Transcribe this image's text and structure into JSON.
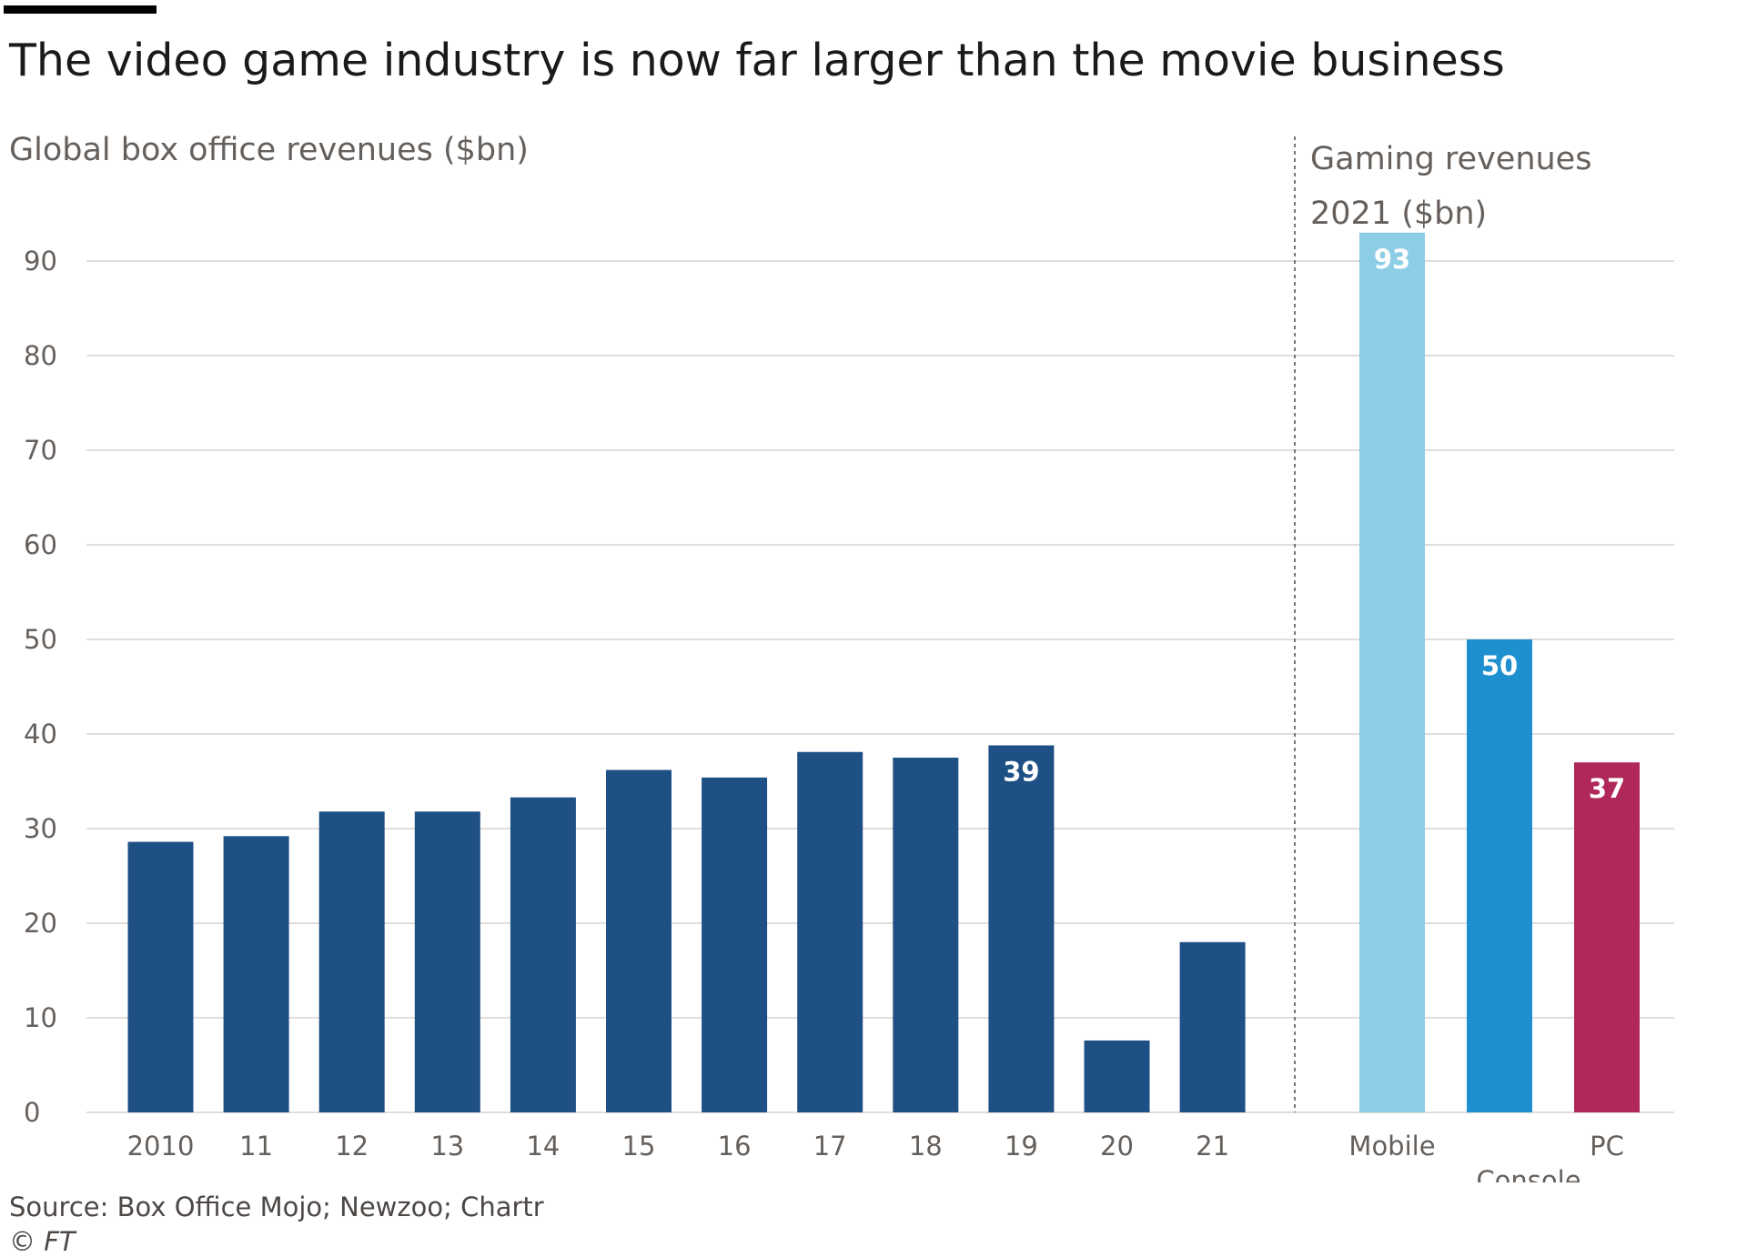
{
  "chart_data": {
    "type": "bar",
    "title": "The video game industry is now far larger than the movie business",
    "subtitle_left": "Global box office revenues ($bn)",
    "subtitle_right": [
      "Gaming revenues",
      "2021 ($bn)"
    ],
    "ylim": [
      0,
      90
    ],
    "y_ticks": [
      "0",
      "10",
      "20",
      "30",
      "40",
      "50",
      "60",
      "70",
      "80",
      "90"
    ],
    "grid": true,
    "series": [
      {
        "categories": [
          "2010",
          "11",
          "12",
          "13",
          "14",
          "15",
          "16",
          "17",
          "18",
          "19",
          "20",
          "21"
        ],
        "values": [
          28.6,
          29.2,
          31.8,
          31.8,
          33.3,
          36.2,
          35.4,
          38.1,
          37.5,
          38.8,
          7.6,
          18.0
        ],
        "labels": [
          "",
          "",
          "",
          "",
          "",
          "",
          "",
          "",
          "",
          "39",
          "",
          ""
        ],
        "color": "#1f5085"
      },
      {
        "categories": [
          "Mobile",
          "Console",
          "PC"
        ],
        "values": [
          93,
          50,
          37
        ],
        "labels": [
          "93",
          "50",
          "37"
        ],
        "colors": [
          "#8ecde6",
          "#1e90d0",
          "#b0285a"
        ]
      }
    ],
    "source": "Source: Box Office Mojo; Newzoo; Chartr",
    "credit": "© FT"
  },
  "colors": {
    "grid": "#e2ddd9",
    "divider": "#7a7570",
    "axis_text": "#66605c"
  }
}
